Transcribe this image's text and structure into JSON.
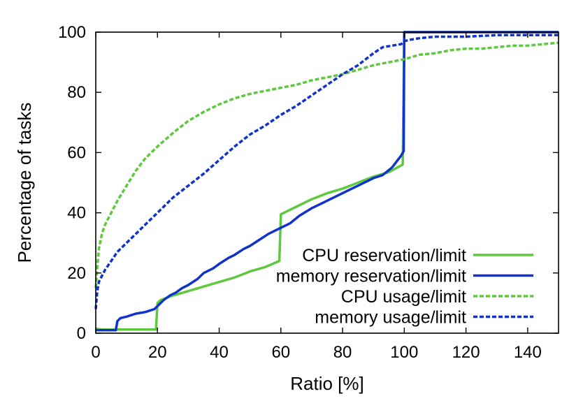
{
  "chart_data": {
    "type": "line",
    "title": "",
    "xlabel": "Ratio [%]",
    "ylabel": "Percentage of tasks",
    "xlim": [
      0,
      150
    ],
    "ylim": [
      0,
      100
    ],
    "xticks": [
      0,
      20,
      40,
      60,
      80,
      100,
      120,
      140
    ],
    "yticks": [
      0,
      20,
      40,
      60,
      80,
      100
    ],
    "grid": false,
    "legend_position": "bottom-right",
    "series": [
      {
        "name": "CPU reservation/limit",
        "color": "#5ec83f",
        "dash": "solid",
        "points": [
          [
            0,
            1.5
          ],
          [
            2,
            1.2
          ],
          [
            6,
            1.2
          ],
          [
            10,
            1.2
          ],
          [
            15,
            1.2
          ],
          [
            19.5,
            1.2
          ],
          [
            20,
            10
          ],
          [
            21,
            11
          ],
          [
            25,
            12.5
          ],
          [
            30,
            14
          ],
          [
            35,
            15.5
          ],
          [
            40,
            17
          ],
          [
            45,
            18.5
          ],
          [
            50,
            20.5
          ],
          [
            55,
            22
          ],
          [
            59.5,
            24
          ],
          [
            60,
            39.5
          ],
          [
            62,
            40.5
          ],
          [
            65,
            42
          ],
          [
            70,
            44.5
          ],
          [
            75,
            46.5
          ],
          [
            80,
            48
          ],
          [
            85,
            50
          ],
          [
            90,
            52
          ],
          [
            95,
            53.5
          ],
          [
            99.5,
            56
          ],
          [
            100,
            100
          ],
          [
            150,
            100
          ]
        ]
      },
      {
        "name": "memory reservation/limit",
        "color": "#1133cc",
        "dash": "solid",
        "points": [
          [
            0,
            1
          ],
          [
            3,
            1
          ],
          [
            6.5,
            1
          ],
          [
            7,
            4
          ],
          [
            8,
            5
          ],
          [
            10,
            5.5
          ],
          [
            13,
            6.5
          ],
          [
            16,
            7
          ],
          [
            19,
            8
          ],
          [
            20,
            9
          ],
          [
            22,
            11
          ],
          [
            24,
            12.5
          ],
          [
            26,
            13.5
          ],
          [
            28,
            15
          ],
          [
            30,
            16
          ],
          [
            33,
            18
          ],
          [
            35,
            20
          ],
          [
            38,
            21.5
          ],
          [
            40,
            23
          ],
          [
            43,
            25
          ],
          [
            45,
            26
          ],
          [
            48,
            28
          ],
          [
            50,
            29
          ],
          [
            53,
            31
          ],
          [
            56,
            33
          ],
          [
            60,
            35
          ],
          [
            63,
            36.5
          ],
          [
            66,
            39
          ],
          [
            70,
            41.5
          ],
          [
            73,
            43
          ],
          [
            76,
            44.5
          ],
          [
            80,
            46.5
          ],
          [
            83,
            48
          ],
          [
            86,
            49.5
          ],
          [
            90,
            51.5
          ],
          [
            93,
            52.5
          ],
          [
            96,
            55
          ],
          [
            99,
            59
          ],
          [
            99.8,
            60.5
          ],
          [
            100,
            100
          ],
          [
            150,
            100
          ]
        ]
      },
      {
        "name": "CPU usage/limit",
        "color": "#5ec83f",
        "dash": "dashed",
        "points": [
          [
            0,
            15
          ],
          [
            0.5,
            22
          ],
          [
            1,
            28
          ],
          [
            2,
            33
          ],
          [
            3,
            36
          ],
          [
            5,
            40
          ],
          [
            7,
            44
          ],
          [
            10,
            49
          ],
          [
            13,
            54
          ],
          [
            16,
            58
          ],
          [
            20,
            62
          ],
          [
            25,
            66.5
          ],
          [
            30,
            70.5
          ],
          [
            35,
            73.5
          ],
          [
            40,
            76
          ],
          [
            45,
            78
          ],
          [
            50,
            79.5
          ],
          [
            55,
            80.5
          ],
          [
            60,
            81.5
          ],
          [
            65,
            82.5
          ],
          [
            70,
            84
          ],
          [
            75,
            85
          ],
          [
            80,
            86
          ],
          [
            85,
            87.5
          ],
          [
            90,
            89
          ],
          [
            95,
            90
          ],
          [
            100,
            91
          ],
          [
            105,
            92.5
          ],
          [
            110,
            93
          ],
          [
            115,
            94
          ],
          [
            120,
            94.5
          ],
          [
            125,
            94.5
          ],
          [
            130,
            95
          ],
          [
            135,
            95.5
          ],
          [
            140,
            95.5
          ],
          [
            145,
            96
          ],
          [
            150,
            96.5
          ]
        ]
      },
      {
        "name": "memory usage/limit",
        "color": "#1133cc",
        "dash": "dashed",
        "points": [
          [
            0,
            8
          ],
          [
            0.5,
            14
          ],
          [
            1,
            17
          ],
          [
            2,
            19
          ],
          [
            3,
            21
          ],
          [
            5,
            24
          ],
          [
            7,
            27
          ],
          [
            10,
            30
          ],
          [
            13,
            33
          ],
          [
            16,
            36
          ],
          [
            20,
            40
          ],
          [
            25,
            45
          ],
          [
            30,
            49
          ],
          [
            35,
            53
          ],
          [
            40,
            57.5
          ],
          [
            45,
            62
          ],
          [
            50,
            66
          ],
          [
            55,
            69
          ],
          [
            60,
            72.5
          ],
          [
            65,
            75.5
          ],
          [
            70,
            79
          ],
          [
            75,
            82.5
          ],
          [
            80,
            86
          ],
          [
            85,
            89
          ],
          [
            90,
            93
          ],
          [
            93,
            95
          ],
          [
            96,
            95.5
          ],
          [
            99,
            96
          ],
          [
            100,
            97
          ],
          [
            102,
            97.5
          ],
          [
            105,
            98
          ],
          [
            110,
            98.5
          ],
          [
            120,
            98.5
          ],
          [
            130,
            99
          ],
          [
            140,
            99
          ],
          [
            150,
            99
          ]
        ]
      }
    ]
  }
}
